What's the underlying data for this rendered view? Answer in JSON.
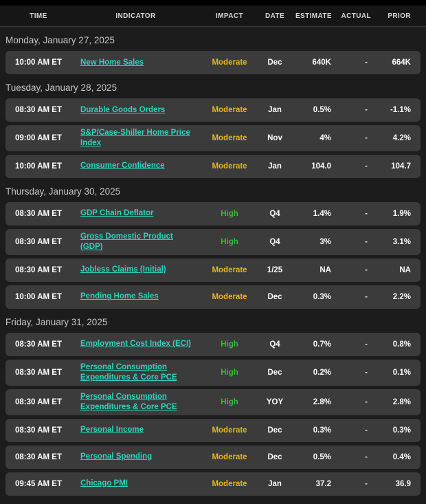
{
  "header": {
    "columns": [
      "TIME",
      "INDICATOR",
      "IMPACT",
      "DATE",
      "ESTIMATE",
      "ACTUAL",
      "PRIOR"
    ]
  },
  "colors": {
    "impact_high": "#33bd33",
    "impact_moderate": "#e5b41f",
    "indicator_link": "#2ed3be",
    "row_background": "#3b3b3b",
    "page_background": "#1c1c1c"
  },
  "sections": [
    {
      "day": "Monday, January 27, 2025",
      "rows": [
        {
          "time": "10:00 AM ET",
          "indicator": "New Home Sales",
          "impact": "Moderate",
          "date": "Dec",
          "estimate": "640K",
          "actual": "-",
          "prior": "664K"
        }
      ]
    },
    {
      "day": "Tuesday, January 28, 2025",
      "rows": [
        {
          "time": "08:30 AM ET",
          "indicator": "Durable Goods Orders",
          "impact": "Moderate",
          "date": "Jan",
          "estimate": "0.5%",
          "actual": "-",
          "prior": "-1.1%"
        },
        {
          "time": "09:00 AM ET",
          "indicator": "S&P/Case-Shiller Home Price Index",
          "impact": "Moderate",
          "date": "Nov",
          "estimate": "4%",
          "actual": "-",
          "prior": "4.2%"
        },
        {
          "time": "10:00 AM ET",
          "indicator": "Consumer Confidence",
          "impact": "Moderate",
          "date": "Jan",
          "estimate": "104.0",
          "actual": "-",
          "prior": "104.7"
        }
      ]
    },
    {
      "day": "Thursday, January 30, 2025",
      "rows": [
        {
          "time": "08:30 AM ET",
          "indicator": "GDP Chain Deflator",
          "impact": "High",
          "date": "Q4",
          "estimate": "1.4%",
          "actual": "-",
          "prior": "1.9%"
        },
        {
          "time": "08:30 AM ET",
          "indicator": "Gross Domestic Product (GDP)",
          "impact": "High",
          "date": "Q4",
          "estimate": "3%",
          "actual": "-",
          "prior": "3.1%"
        },
        {
          "time": "08:30 AM ET",
          "indicator": "Jobless Claims (Initial)",
          "impact": "Moderate",
          "date": "1/25",
          "estimate": "NA",
          "actual": "-",
          "prior": "NA"
        },
        {
          "time": "10:00 AM ET",
          "indicator": "Pending Home Sales",
          "impact": "Moderate",
          "date": "Dec",
          "estimate": "0.3%",
          "actual": "-",
          "prior": "2.2%"
        }
      ]
    },
    {
      "day": "Friday, January 31, 2025",
      "rows": [
        {
          "time": "08:30 AM ET",
          "indicator": "Employment Cost Index (ECI)",
          "impact": "High",
          "date": "Q4",
          "estimate": "0.7%",
          "actual": "-",
          "prior": "0.8%"
        },
        {
          "time": "08:30 AM ET",
          "indicator": "Personal Consumption Expenditures & Core PCE",
          "impact": "High",
          "date": "Dec",
          "estimate": "0.2%",
          "actual": "-",
          "prior": "0.1%"
        },
        {
          "time": "08:30 AM ET",
          "indicator": "Personal Consumption Expenditures & Core PCE",
          "impact": "High",
          "date": "YOY",
          "estimate": "2.8%",
          "actual": "-",
          "prior": "2.8%"
        },
        {
          "time": "08:30 AM ET",
          "indicator": "Personal Income",
          "impact": "Moderate",
          "date": "Dec",
          "estimate": "0.3%",
          "actual": "-",
          "prior": "0.3%"
        },
        {
          "time": "08:30 AM ET",
          "indicator": "Personal Spending",
          "impact": "Moderate",
          "date": "Dec",
          "estimate": "0.5%",
          "actual": "-",
          "prior": "0.4%"
        },
        {
          "time": "09:45 AM ET",
          "indicator": "Chicago PMI",
          "impact": "Moderate",
          "date": "Jan",
          "estimate": "37.2",
          "actual": "-",
          "prior": "36.9"
        }
      ]
    }
  ]
}
